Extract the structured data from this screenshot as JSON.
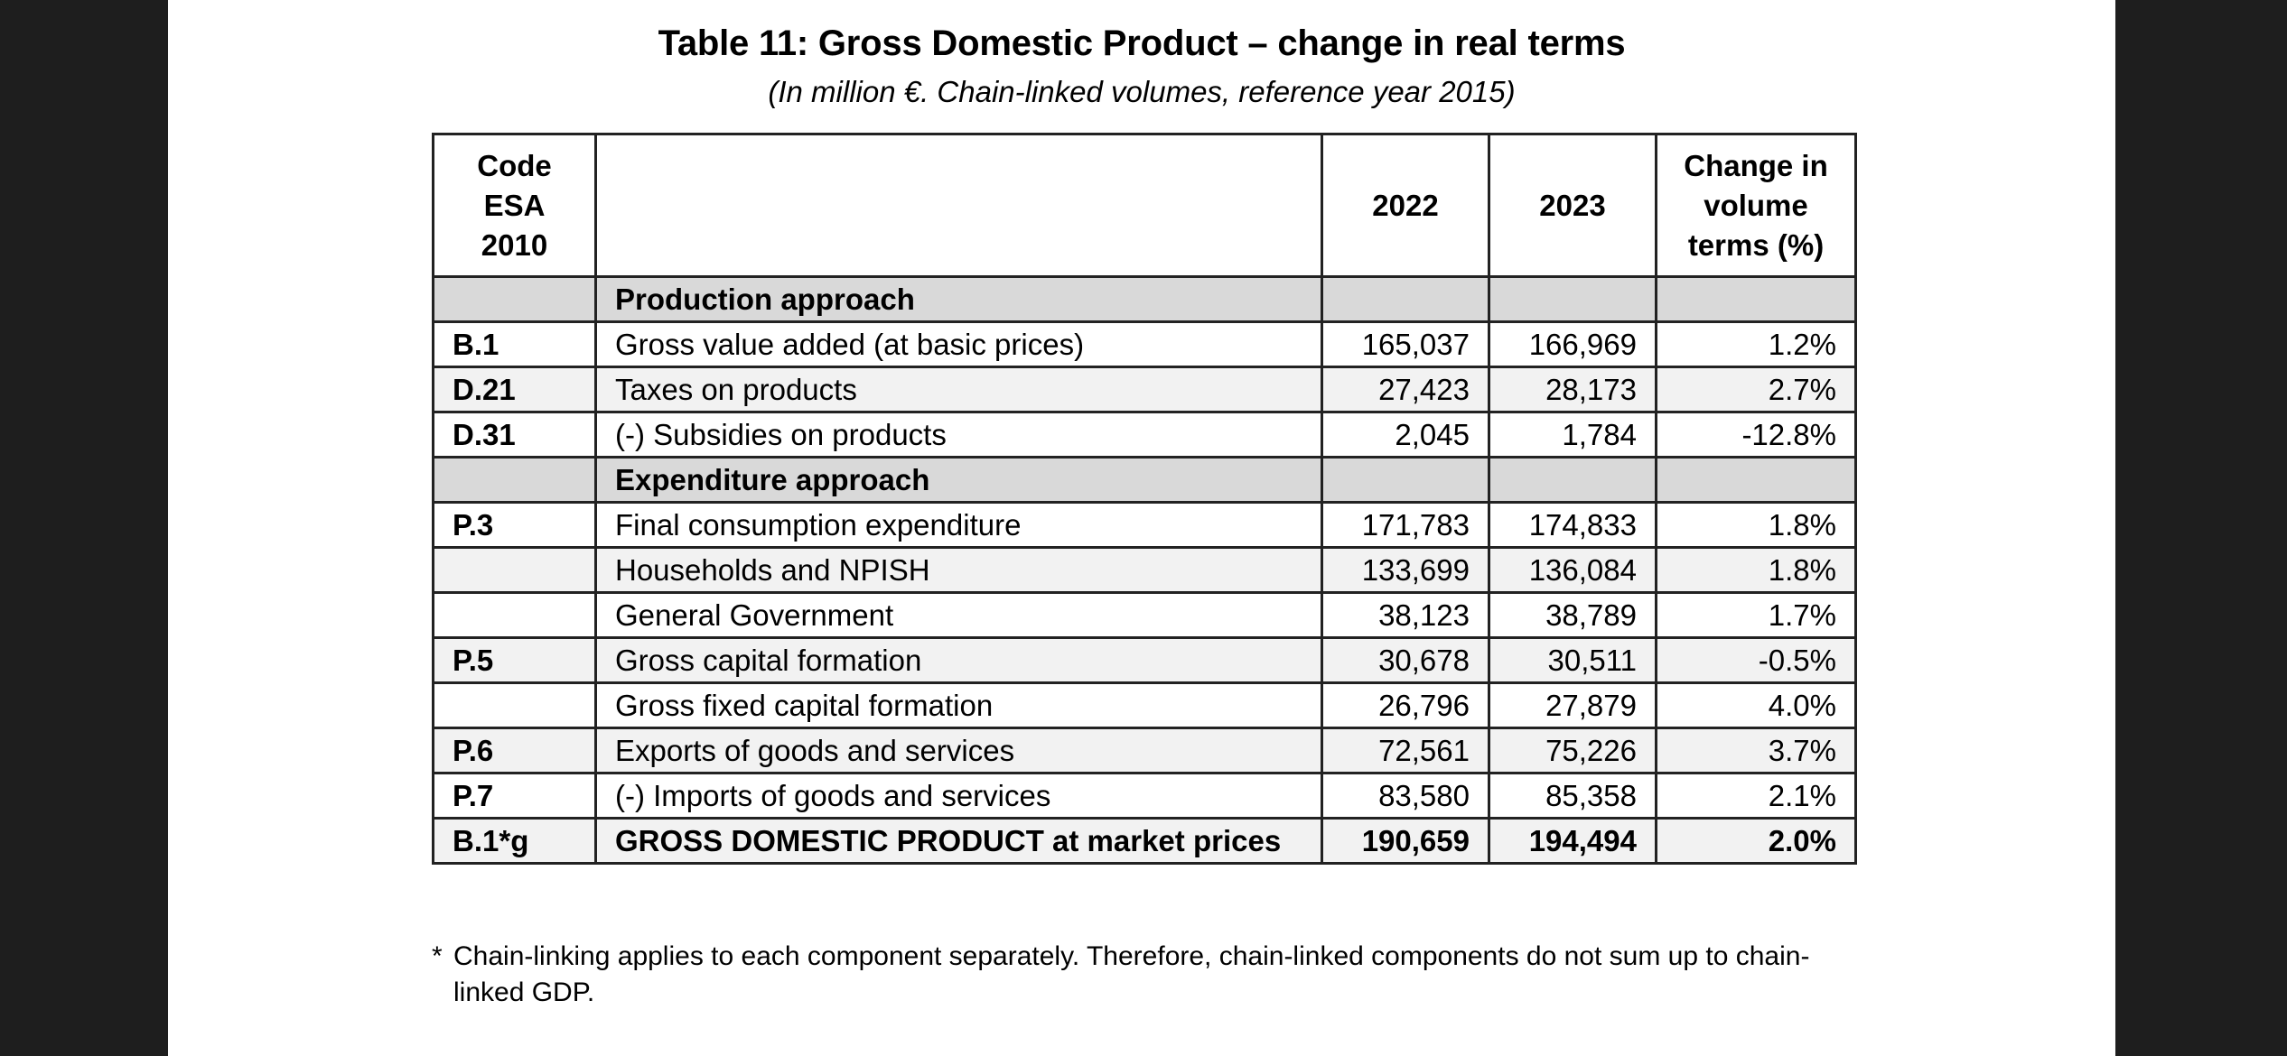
{
  "document": {
    "title": "Table 11: Gross Domestic Product – change in real terms",
    "subtitle": "(In million €. Chain-linked volumes, reference year 2015)",
    "table": {
      "headers": {
        "code": "Code ESA 2010",
        "description": "",
        "y2022": "2022",
        "y2023": "2023",
        "change": "Change in volume terms (%)"
      },
      "rows": [
        {
          "type": "section",
          "code": "",
          "label": "Production approach",
          "v2022": "",
          "v2023": "",
          "change": ""
        },
        {
          "type": "white",
          "code": "B.1",
          "label": "Gross value added (at basic prices)",
          "v2022": "165,037",
          "v2023": "166,969",
          "change": "1.2%"
        },
        {
          "type": "shaded",
          "code": "D.21",
          "label": "Taxes on products",
          "v2022": "27,423",
          "v2023": "28,173",
          "change": "2.7%"
        },
        {
          "type": "white",
          "code": "D.31",
          "label": "(-) Subsidies on products",
          "v2022": "2,045",
          "v2023": "1,784",
          "change": "-12.8%"
        },
        {
          "type": "section",
          "code": "",
          "label": "Expenditure approach",
          "v2022": "",
          "v2023": "",
          "change": ""
        },
        {
          "type": "white",
          "code": "P.3",
          "label": "Final consumption expenditure",
          "v2022": "171,783",
          "v2023": "174,833",
          "change": "1.8%"
        },
        {
          "type": "shaded",
          "code": "",
          "label": "Households and NPISH",
          "indent": true,
          "v2022": "133,699",
          "v2023": "136,084",
          "change": "1.8%"
        },
        {
          "type": "white",
          "code": "",
          "label": "General Government",
          "indent": true,
          "v2022": "38,123",
          "v2023": "38,789",
          "change": "1.7%"
        },
        {
          "type": "shaded",
          "code": "P.5",
          "label": "Gross capital formation",
          "v2022": "30,678",
          "v2023": "30,511",
          "change": "-0.5%"
        },
        {
          "type": "white",
          "code": "",
          "label": "Gross fixed capital formation",
          "indent": true,
          "v2022": "26,796",
          "v2023": "27,879",
          "change": "4.0%"
        },
        {
          "type": "shaded",
          "code": "P.6",
          "label": "Exports of goods and services",
          "v2022": "72,561",
          "v2023": "75,226",
          "change": "3.7%"
        },
        {
          "type": "white",
          "code": "P.7",
          "label": "(-) Imports of goods and services",
          "v2022": "83,580",
          "v2023": "85,358",
          "change": "2.1%"
        },
        {
          "type": "total",
          "code": "B.1*g",
          "label": "GROSS DOMESTIC PRODUCT at market prices",
          "v2022": "190,659",
          "v2023": "194,494",
          "change": "2.0%"
        }
      ]
    },
    "footnote": {
      "marker": "*",
      "text": "Chain-linking applies to each component separately. Therefore, chain-linked components do not sum up to chain-linked GDP."
    }
  },
  "colors": {
    "background": "#1e1e1e",
    "page": "#ffffff",
    "section_fill": "#d9d9d9",
    "row_shade": "#f2f2f2",
    "border": "#222222"
  }
}
